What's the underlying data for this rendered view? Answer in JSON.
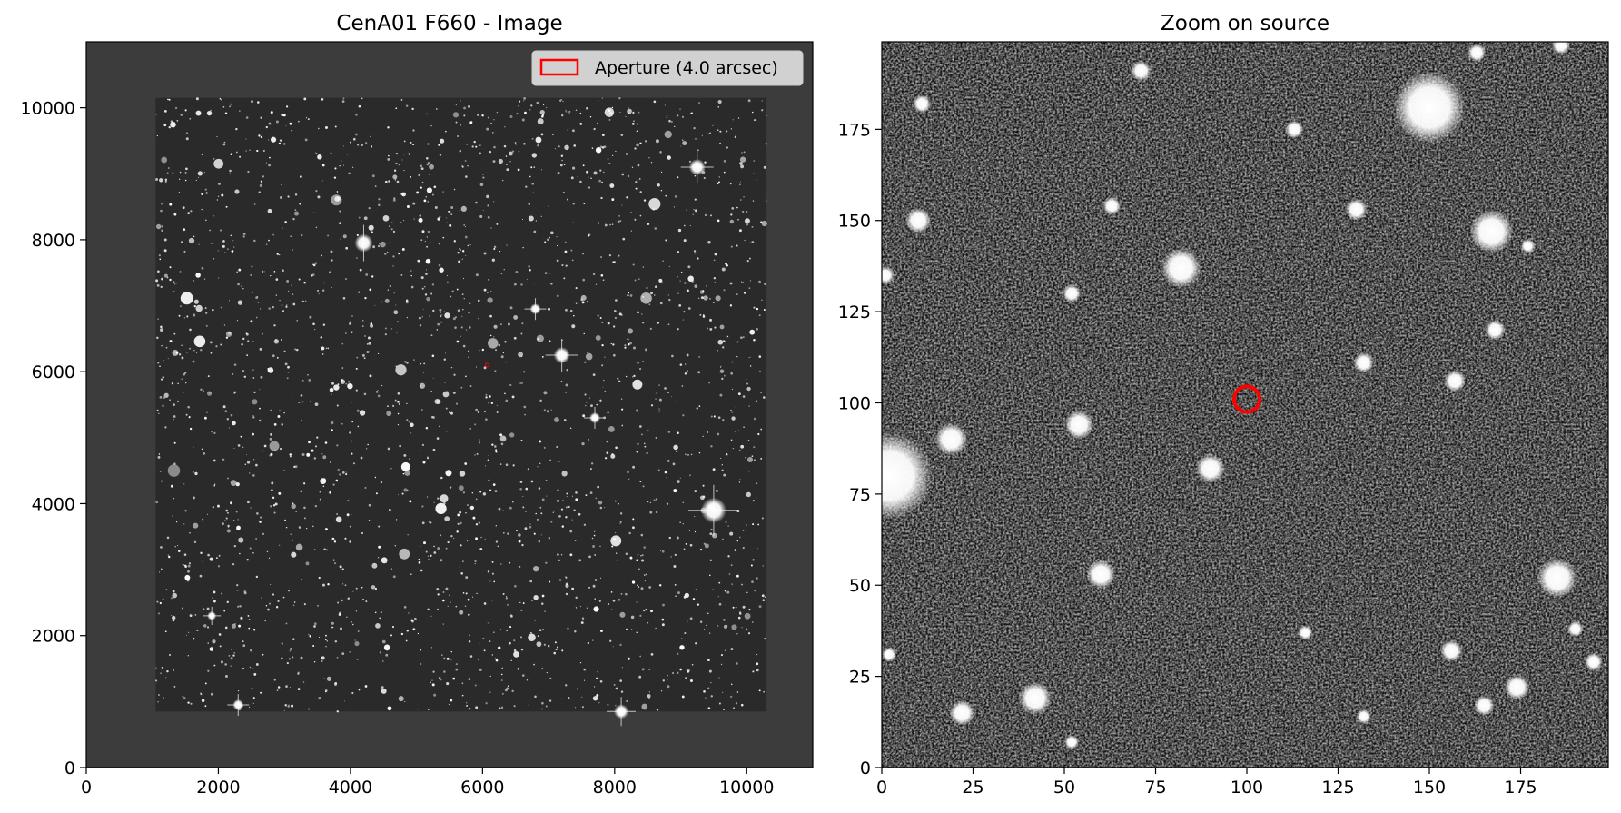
{
  "panels": [
    {
      "title": "CenA01 F660 - Image",
      "x_range": [
        0,
        11000
      ],
      "y_range": [
        0,
        11000
      ],
      "x_ticks": [
        0,
        2000,
        4000,
        6000,
        8000,
        10000
      ],
      "y_ticks": [
        0,
        2000,
        4000,
        6000,
        8000,
        10000
      ],
      "background_color": "#3c3c3c",
      "image_extent": {
        "x": [
          1050,
          10300
        ],
        "y": [
          850,
          10150
        ]
      },
      "source_marker": {
        "x": 6070,
        "y": 6100
      },
      "legend": {
        "label": "Aperture (4.0 arcsec)",
        "placement": "upper right"
      }
    },
    {
      "title": "Zoom on source",
      "x_range": [
        0,
        199
      ],
      "y_range": [
        0,
        199
      ],
      "x_ticks": [
        0,
        25,
        50,
        75,
        100,
        125,
        150,
        175
      ],
      "y_ticks": [
        0,
        25,
        50,
        75,
        100,
        125,
        150,
        175
      ],
      "aperture": {
        "x": 100,
        "y": 101,
        "radius": 3.5,
        "color": "#ff0000"
      }
    }
  ]
}
